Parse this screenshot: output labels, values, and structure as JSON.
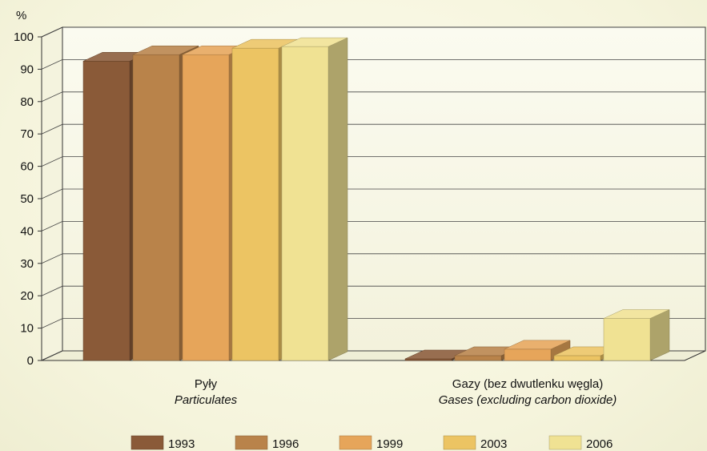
{
  "chart_data": {
    "type": "bar",
    "ylabel": "%",
    "ylim": [
      0,
      100
    ],
    "yticks": [
      0,
      10,
      20,
      30,
      40,
      50,
      60,
      70,
      80,
      90,
      100
    ],
    "grid": true,
    "legend_position": "bottom",
    "categories": [
      {
        "label": "Pyły",
        "label_en": "Particulates"
      },
      {
        "label": "Gazy (bez dwutlenku węgla)",
        "label_en": "Gases (excluding carbon dioxide)"
      }
    ],
    "series": [
      {
        "name": "1993",
        "color": "#8a5a38",
        "values": [
          92.5,
          0.5
        ]
      },
      {
        "name": "1996",
        "color": "#b9834a",
        "values": [
          94.5,
          1.5
        ]
      },
      {
        "name": "1999",
        "color": "#e6a55a",
        "values": [
          94.5,
          3.5
        ]
      },
      {
        "name": "2003",
        "color": "#ecc463",
        "values": [
          96.5,
          1.5
        ]
      },
      {
        "name": "2006",
        "color": "#f0e293",
        "values": [
          97.0,
          13.0
        ]
      }
    ]
  }
}
